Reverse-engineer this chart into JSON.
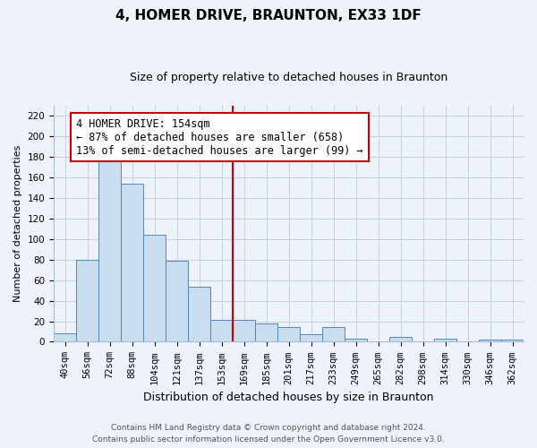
{
  "title": "4, HOMER DRIVE, BRAUNTON, EX33 1DF",
  "subtitle": "Size of property relative to detached houses in Braunton",
  "xlabel": "Distribution of detached houses by size in Braunton",
  "ylabel": "Number of detached properties",
  "bar_labels": [
    "40sqm",
    "56sqm",
    "72sqm",
    "88sqm",
    "104sqm",
    "121sqm",
    "137sqm",
    "153sqm",
    "169sqm",
    "185sqm",
    "201sqm",
    "217sqm",
    "233sqm",
    "249sqm",
    "265sqm",
    "282sqm",
    "298sqm",
    "314sqm",
    "330sqm",
    "346sqm",
    "362sqm"
  ],
  "bar_values": [
    8,
    80,
    181,
    154,
    104,
    79,
    54,
    21,
    21,
    18,
    14,
    7,
    14,
    3,
    0,
    5,
    0,
    3,
    0,
    2,
    2
  ],
  "bar_color": "#c8ddf0",
  "bar_edge_color": "#5588bb",
  "vline_x": 7.5,
  "vline_color": "#cc0000",
  "annotation_text": "4 HOMER DRIVE: 154sqm\n← 87% of detached houses are smaller (658)\n13% of semi-detached houses are larger (99) →",
  "annotation_box_color": "#ffffff",
  "annotation_box_edge": "#cc0000",
  "ylim": [
    0,
    230
  ],
  "yticks": [
    0,
    20,
    40,
    60,
    80,
    100,
    120,
    140,
    160,
    180,
    200,
    220
  ],
  "footer_line1": "Contains HM Land Registry data © Crown copyright and database right 2024.",
  "footer_line2": "Contains public sector information licensed under the Open Government Licence v3.0.",
  "background_color": "#eef2fa",
  "grid_color": "#c5cfe0",
  "title_fontsize": 11,
  "subtitle_fontsize": 9,
  "ylabel_fontsize": 8,
  "xlabel_fontsize": 9,
  "tick_fontsize": 7.5,
  "footer_fontsize": 6.5,
  "annot_fontsize": 8.5
}
